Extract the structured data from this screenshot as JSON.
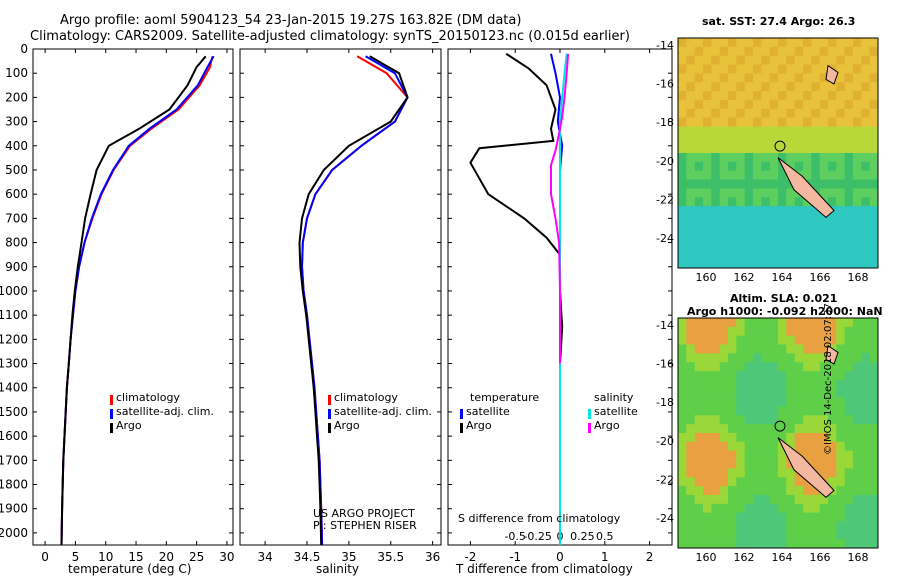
{
  "header": {
    "line1": "Argo profile: aoml 5904123_54 23-Jan-2015 19.27S 163.82E (DM data)",
    "line2": "Climatology: CARS2009. Satellite-adjusted climatology: synTS_20150123.nc (0.015d earlier)"
  },
  "colors": {
    "climatology": "#ff0000",
    "satellite_adj": "#0000ff",
    "argo": "#000000",
    "salinity_sat": "#00e5e5",
    "salinity_argo": "#ff00ff",
    "land": "#f4b8a0"
  },
  "depth_axis": {
    "ticks": [
      0,
      100,
      200,
      300,
      400,
      500,
      600,
      700,
      800,
      900,
      1000,
      1100,
      1200,
      1300,
      1400,
      1500,
      1600,
      1700,
      1800,
      1900,
      2000
    ],
    "tick_labels": [
      "0",
      "100",
      "200",
      "300",
      "400",
      "500",
      "600",
      "700",
      "800",
      "900",
      "1000",
      "1100",
      "1200",
      "1300",
      "1400",
      "1500",
      "1600",
      "1700",
      "1800",
      "1900",
      "2000"
    ]
  },
  "legends": {
    "temp": [
      "climatology",
      "satellite-adj. clim.",
      "Argo"
    ],
    "sal": [
      "climatology",
      "satellite-adj. clim.",
      "Argo"
    ],
    "diff_left_title": "temperature",
    "diff_left": [
      "satellite",
      "Argo"
    ],
    "diff_right_title": "salinity",
    "diff_right": [
      "satellite",
      "Argo"
    ]
  },
  "credits": {
    "line1": "US ARGO PROJECT",
    "line2": "PI: STEPHEN RISER"
  },
  "diff_panel": {
    "s_label": "S difference from climatology",
    "s_ticks": [
      "-0.5",
      "-0.25",
      "0",
      "0.25",
      "0.5"
    ],
    "t_ticks": [
      "-2",
      "-1",
      "0",
      "1",
      "2"
    ]
  },
  "maps": {
    "top_title": "sat. SST: 27.4 Argo: 26.3",
    "bottom_title1": "Altim. SLA: 0.021",
    "bottom_title2": "Argo h1000: -0.092 h2000: NaN",
    "lon_ticks": [
      "160",
      "162",
      "164",
      "166",
      "168"
    ],
    "lat_ticks": [
      "-14",
      "-16",
      "-18",
      "-20",
      "-22",
      "-24"
    ]
  },
  "timestamp": "©IMOS 14-Dec-2018 02:07:37",
  "chart_data": [
    {
      "type": "line",
      "xlabel": "temperature (deg C)",
      "ylabel": "",
      "xlim": [
        -2,
        31
      ],
      "ylim": [
        2050,
        0
      ],
      "xticks": [
        0,
        5,
        10,
        15,
        20,
        25,
        30
      ],
      "series": [
        {
          "name": "climatology",
          "x": [
            27.6,
            27.2,
            25.5,
            22.0,
            17.5,
            14.0,
            11.3,
            9.3,
            7.8,
            6.5,
            5.6,
            5.0,
            4.6,
            4.2,
            3.9,
            3.6,
            3.4,
            3.2,
            3.0,
            2.9,
            2.8,
            2.7
          ],
          "y": [
            30,
            75,
            150,
            250,
            330,
            400,
            500,
            600,
            700,
            800,
            900,
            1000,
            1100,
            1200,
            1300,
            1400,
            1500,
            1600,
            1700,
            1800,
            1900,
            2050
          ]
        },
        {
          "name": "satellite-adj. clim.",
          "x": [
            27.8,
            26.8,
            25.2,
            21.7,
            17.2,
            13.8,
            11.2,
            9.2,
            7.7,
            6.5,
            5.6,
            5.0,
            4.6,
            4.2,
            3.9,
            3.6,
            3.4,
            3.2,
            3.0,
            2.9,
            2.8,
            2.7
          ],
          "y": [
            30,
            75,
            150,
            250,
            330,
            400,
            500,
            600,
            700,
            800,
            900,
            1000,
            1100,
            1200,
            1300,
            1400,
            1500,
            1600,
            1700,
            1800,
            1900,
            2050
          ]
        },
        {
          "name": "Argo",
          "x": [
            26.5,
            25.0,
            23.5,
            20.5,
            15.5,
            10.5,
            8.5,
            7.5,
            6.6,
            6.0,
            5.4,
            4.9,
            4.5,
            4.2,
            3.9,
            3.6,
            3.4,
            3.2,
            3.0,
            2.9,
            2.8,
            2.7
          ],
          "y": [
            30,
            75,
            150,
            250,
            330,
            400,
            500,
            600,
            700,
            800,
            900,
            1000,
            1100,
            1200,
            1300,
            1400,
            1500,
            1600,
            1700,
            1800,
            1900,
            2050
          ]
        }
      ]
    },
    {
      "type": "line",
      "xlabel": "salinity",
      "ylabel": "",
      "xlim": [
        33.7,
        36.1
      ],
      "ylim": [
        2050,
        0
      ],
      "xticks": [
        34,
        34.5,
        35,
        35.5,
        36
      ],
      "series": [
        {
          "name": "climatology",
          "x": [
            35.1,
            35.45,
            35.7,
            35.55,
            35.15,
            34.8,
            34.6,
            34.5,
            34.45,
            34.44,
            34.46,
            34.5,
            34.53,
            34.56,
            34.59,
            34.61,
            34.63,
            34.65,
            34.66,
            34.67,
            34.68
          ],
          "y": [
            30,
            100,
            200,
            300,
            400,
            500,
            600,
            700,
            800,
            900,
            1000,
            1100,
            1200,
            1300,
            1400,
            1500,
            1600,
            1700,
            1800,
            1900,
            2050
          ]
        },
        {
          "name": "satellite-adj. clim.",
          "x": [
            35.2,
            35.55,
            35.7,
            35.55,
            35.15,
            34.8,
            34.6,
            34.5,
            34.45,
            34.44,
            34.46,
            34.5,
            34.53,
            34.56,
            34.59,
            34.61,
            34.63,
            34.65,
            34.66,
            34.67,
            34.68
          ],
          "y": [
            30,
            100,
            200,
            300,
            400,
            500,
            600,
            700,
            800,
            900,
            1000,
            1100,
            1200,
            1300,
            1400,
            1500,
            1600,
            1700,
            1800,
            1900,
            2050
          ]
        },
        {
          "name": "Argo",
          "x": [
            35.25,
            35.6,
            35.7,
            35.5,
            35.0,
            34.7,
            34.52,
            34.44,
            34.41,
            34.42,
            34.45,
            34.49,
            34.52,
            34.55,
            34.58,
            34.6,
            34.62,
            34.64,
            34.65,
            34.66,
            34.67
          ],
          "y": [
            30,
            100,
            200,
            300,
            400,
            500,
            600,
            700,
            800,
            900,
            1000,
            1100,
            1200,
            1300,
            1400,
            1500,
            1600,
            1700,
            1800,
            1900,
            2050
          ]
        }
      ]
    },
    {
      "type": "line",
      "xlabel": "T difference from climatology",
      "ylabel": "",
      "xlim": [
        -2.5,
        2.5
      ],
      "ylim": [
        2050,
        0
      ],
      "xticks": [
        -2,
        -1,
        0,
        1,
        2
      ],
      "series": [
        {
          "name": "temperature satellite",
          "x": [
            -0.2,
            -0.1,
            0.0,
            -0.05,
            0.05,
            0.0,
            0.0,
            0.0,
            0.0,
            0.0
          ],
          "y": [
            20,
            100,
            200,
            300,
            400,
            500,
            800,
            1100,
            1300,
            1500
          ]
        },
        {
          "name": "temperature Argo",
          "x": [
            -1.2,
            -0.7,
            -0.3,
            -0.1,
            -0.2,
            -0.15,
            -1.8,
            -2.0,
            -1.6,
            -0.8,
            -0.3,
            0.0,
            0.0,
            0.05,
            0.0,
            0.0
          ],
          "y": [
            20,
            80,
            150,
            250,
            330,
            380,
            410,
            470,
            600,
            700,
            780,
            850,
            1000,
            1150,
            1300,
            1500
          ]
        },
        {
          "name": "salinity satellite",
          "x": [
            0.15,
            0.1,
            0.05,
            0.0,
            0.0,
            0.0,
            0.0,
            0.0,
            0.0,
            0.0,
            0.0
          ],
          "y": [
            20,
            100,
            200,
            300,
            400,
            800,
            1200,
            1500,
            1700,
            1900,
            2050
          ]
        },
        {
          "name": "salinity Argo",
          "x": [
            0.18,
            0.15,
            0.1,
            0.05,
            -0.02,
            -0.1,
            -0.2,
            -0.2,
            -0.1,
            -0.02,
            0.0,
            0.0
          ],
          "y": [
            20,
            100,
            200,
            280,
            350,
            420,
            480,
            600,
            700,
            800,
            1000,
            1300
          ]
        }
      ]
    }
  ]
}
